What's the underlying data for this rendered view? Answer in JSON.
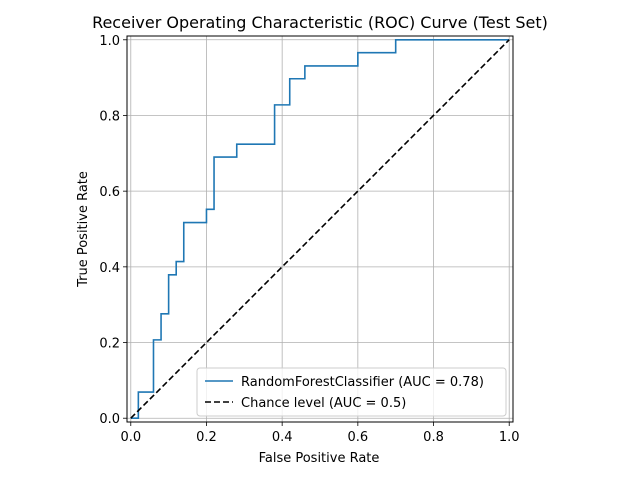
{
  "chart_data": {
    "type": "line",
    "title": "Receiver Operating Characteristic (ROC) Curve (Test Set)",
    "xlabel": "False Positive Rate",
    "ylabel": "True Positive Rate",
    "xlim": [
      -0.01,
      1.01
    ],
    "ylim": [
      -0.01,
      1.01
    ],
    "xticks": [
      0.0,
      0.2,
      0.4,
      0.6,
      0.8,
      1.0
    ],
    "yticks": [
      0.0,
      0.2,
      0.4,
      0.6,
      0.8,
      1.0
    ],
    "xtick_labels": [
      "0.0",
      "0.2",
      "0.4",
      "0.6",
      "0.8",
      "1.0"
    ],
    "ytick_labels": [
      "0.0",
      "0.2",
      "0.4",
      "0.6",
      "0.8",
      "1.0"
    ],
    "grid": true,
    "legend_position": "lower-right",
    "series": [
      {
        "name": "RandomForestClassifier (AUC = 0.78)",
        "color": "#1f77b4",
        "style": "solid",
        "x": [
          0.0,
          0.02,
          0.02,
          0.06,
          0.06,
          0.08,
          0.08,
          0.1,
          0.1,
          0.12,
          0.12,
          0.14,
          0.14,
          0.2,
          0.2,
          0.22,
          0.22,
          0.28,
          0.28,
          0.38,
          0.38,
          0.42,
          0.42,
          0.46,
          0.46,
          0.6,
          0.6,
          0.7,
          0.7,
          1.0
        ],
        "y": [
          0.0,
          0.0,
          0.069,
          0.069,
          0.207,
          0.207,
          0.276,
          0.276,
          0.379,
          0.379,
          0.414,
          0.414,
          0.517,
          0.517,
          0.552,
          0.552,
          0.69,
          0.69,
          0.724,
          0.724,
          0.828,
          0.828,
          0.897,
          0.897,
          0.931,
          0.931,
          0.966,
          0.966,
          1.0,
          1.0
        ]
      },
      {
        "name": "Chance level (AUC = 0.5)",
        "color": "#000000",
        "style": "dashed",
        "x": [
          0.0,
          1.0
        ],
        "y": [
          0.0,
          1.0
        ]
      }
    ]
  }
}
